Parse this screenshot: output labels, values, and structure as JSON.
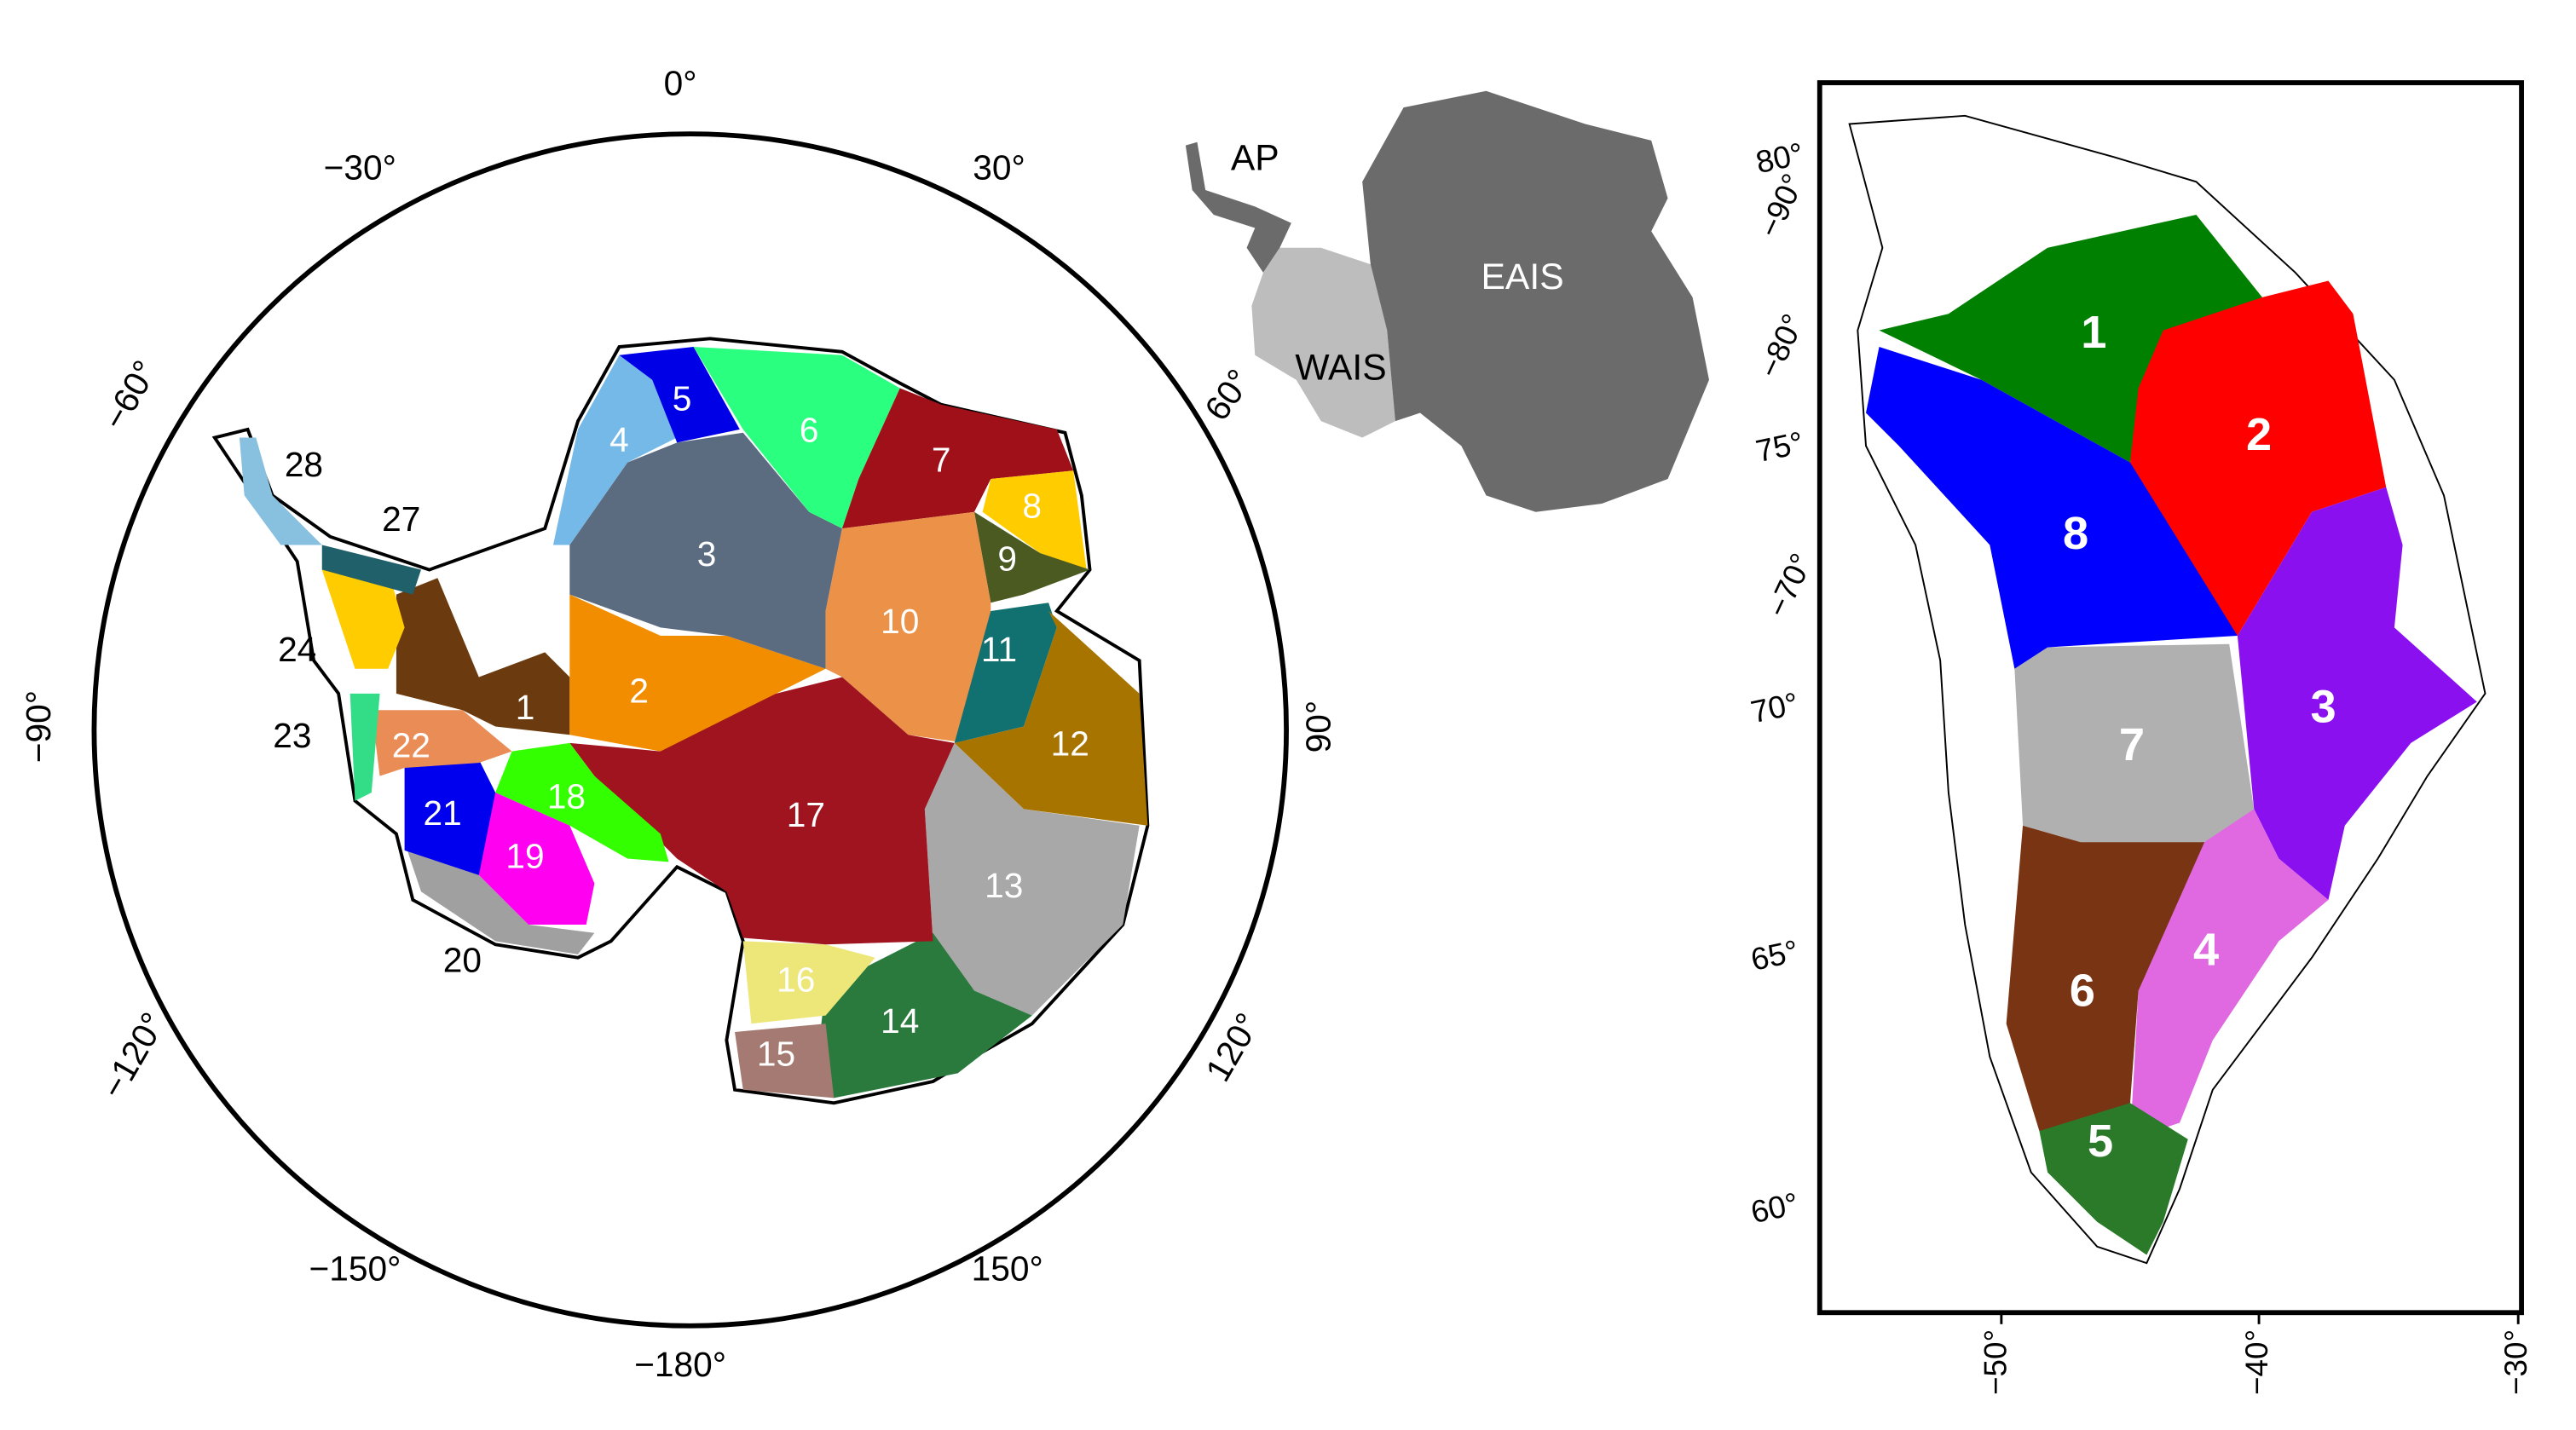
{
  "antarctica": {
    "longitude_labels": [
      "0°",
      "30°",
      "60°",
      "90°",
      "120°",
      "150°",
      "−180°",
      "−150°",
      "−120°",
      "−90°",
      "−60°",
      "−30°"
    ],
    "basins": [
      {
        "label": "1",
        "color": "#6b3a0e"
      },
      {
        "label": "2",
        "color": "#f28d00"
      },
      {
        "label": "3",
        "color": "#5b6b80"
      },
      {
        "label": "4",
        "color": "#74b9e8"
      },
      {
        "label": "5",
        "color": "#0000e6"
      },
      {
        "label": "6",
        "color": "#2bff80"
      },
      {
        "label": "7",
        "color": "#a01018"
      },
      {
        "label": "8",
        "color": "#ffcc00"
      },
      {
        "label": "9",
        "color": "#4a5a20"
      },
      {
        "label": "10",
        "color": "#eb9148"
      },
      {
        "label": "11",
        "color": "#117070"
      },
      {
        "label": "12",
        "color": "#a87400"
      },
      {
        "label": "13",
        "color": "#a8a8a8"
      },
      {
        "label": "14",
        "color": "#2a7a3d"
      },
      {
        "label": "15",
        "color": "#a47a72"
      },
      {
        "label": "16",
        "color": "#ede77a"
      },
      {
        "label": "17",
        "color": "#a01420"
      },
      {
        "label": "18",
        "color": "#33ff00"
      },
      {
        "label": "19",
        "color": "#ff00f0"
      },
      {
        "label": "20",
        "color": "#a0a0a0"
      },
      {
        "label": "21",
        "color": "#0000ee"
      },
      {
        "label": "22",
        "color": "#ea8c55"
      },
      {
        "label": "23",
        "color": "#33dd88"
      },
      {
        "label": "24",
        "color": "#ffcc00"
      },
      {
        "label": "27",
        "color": "#20606a"
      },
      {
        "label": "28",
        "color": "#88c0e0"
      }
    ]
  },
  "inset": {
    "regions": [
      {
        "label": "AP",
        "color": "#6b6b6b"
      },
      {
        "label": "WAIS",
        "color": "#bdbdbd"
      },
      {
        "label": "EAIS",
        "color": "#6b6b6b"
      }
    ]
  },
  "greenland": {
    "latitude_labels": [
      "80°",
      "75°",
      "70°",
      "65°",
      "60°"
    ],
    "longitude_labels": [
      "−90°",
      "−80°",
      "−70°",
      "−50°",
      "−40°",
      "−30°"
    ],
    "basins": [
      {
        "label": "1",
        "color": "#008000"
      },
      {
        "label": "2",
        "color": "#ff0000"
      },
      {
        "label": "3",
        "color": "#8b10f0"
      },
      {
        "label": "4",
        "color": "#e068e0"
      },
      {
        "label": "5",
        "color": "#2a7a2a"
      },
      {
        "label": "6",
        "color": "#783413"
      },
      {
        "label": "7",
        "color": "#b0b0b0"
      },
      {
        "label": "8",
        "color": "#0000ff"
      }
    ]
  }
}
